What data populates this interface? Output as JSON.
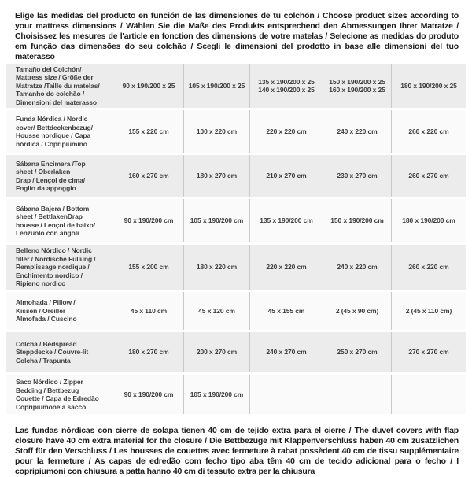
{
  "intro": {
    "text": "Elige las medidas del producto en función de las dimensiones de tu colchón / Choose product sizes according to your mattress dimensions / Wählen Sie die Maße des Produkts entsprechend den Abmessungen Ihrer Matratze / Choisissez les mesures de l'article en fonction des dimensions de votre matelas / Selecione as medidas do produto em função das dimensões do seu colchão / Scegli le dimensioni del prodotto in base alle dimensioni del tuo materasso"
  },
  "table": {
    "rows": [
      {
        "label": "Tamaño del Colchón/\nMattress size / Größe der\nMatratze /Taille du matelas/\nTamanho do colchão /\nDimensioni del materasso",
        "cells": [
          "90 x 190/200 x 25",
          "105 x 190/200 x 25",
          "135 x 190/200 x 25\n140 x 190/200 x 25",
          "150 x 190/200 x 25\n160 x 190/200 x 25",
          "180 x 190/200 x 25"
        ]
      },
      {
        "label": "Funda Nórdica / Nordic\ncover/ Bettdeckenbezug/\nHousse nordique / Capa\nnórdica / Copripiumino",
        "cells": [
          "155 x 220 cm",
          "100 x 220 cm",
          "220 x 220 cm",
          "240 x 220 cm",
          "260 x 220 cm"
        ]
      },
      {
        "label": "Sábana Encimera /Top\nsheet / Oberlaken\nDrap / Lençol de cima/\nFoglio da appoggio",
        "cells": [
          "160 x 270 cm",
          "180 x 270 cm",
          "210 x 270 cm",
          "230 x 270 cm",
          "260 x 270 cm"
        ]
      },
      {
        "label": "Sábana Bajera / Bottom\nsheet / BettlakenDrap\nhousse / Lençol de baixo/\nLenzuolo con angoli",
        "cells": [
          "90 x 190/200 cm",
          "105 x 190/200 cm",
          "135 x 190/200 cm",
          "150 x 190/200 cm",
          "180 x 190/200 cm"
        ]
      },
      {
        "label": "Belleno Nórdico / Nordic\nfiller / Nordische Füllung /\nRemplissage nordique /\nEnchimento nordico /\nRipieno nordico",
        "cells": [
          "155 x 200 cm",
          "180 x 220 cm",
          "220 x 220 cm",
          "240 x 220 cm",
          "260 x 220 cm"
        ]
      },
      {
        "label": "Almohada / Pillow /\nKissen / Oreiller\nAlmofada / Cuscino",
        "cells": [
          "45 x 110 cm",
          "45 x 120 cm",
          "45 x 155 cm",
          "2 (45 x 90 cm)",
          "2 (45 x 110 cm)"
        ]
      },
      {
        "label": "Colcha / Bedspread\nSteppdecke / Couvre-lit\nColcha / Trapunta",
        "cells": [
          "180 x 270 cm",
          "200 x 270 cm",
          "240 x 270 cm",
          "250 x 270 cm",
          "270 x 270 cm"
        ]
      },
      {
        "label": "Saco Nórdico / Zipper\nBedding / Bettbezug\nCouette / Capa de Edredão\nCopripiumone a sacco",
        "cells": [
          "90 x 190/200 cm",
          "105 x 190/200 cm",
          "",
          "",
          ""
        ]
      }
    ]
  },
  "note": {
    "text": "Las fundas nórdicas con cierre de solapa tienen 40 cm de tejido extra para el cierre / The duvet covers with flap closure have 40 cm extra material for the closure / Die Bettbezüge mit Klappenverschluss haben 40 cm zusätzlichen Stoff für den Verschluss / Les housses de couettes avec fermeture à rabat possèdent 40 cm de tissu supplémentaire pour la fermeture / As capas de edredão com fecho tipo aba têm 40 cm de tecido adicional para o fecho / I copripiumoni con chiusura a patta hanno 40 cm di tessuto extra per la chiusura"
  },
  "colors": {
    "stripe_gray": "#ececec",
    "row_white": "#fafafa",
    "divider": "#c9c9c9",
    "text": "#3d3d3d"
  }
}
